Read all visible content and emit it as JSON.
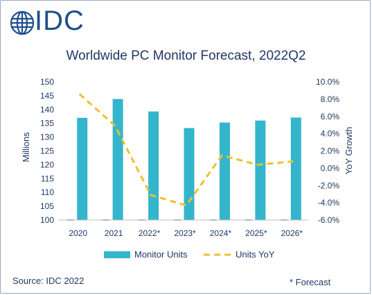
{
  "logo": {
    "text": "IDC",
    "icon": "globe-icon",
    "color": "#1f4e8c"
  },
  "chart_data": {
    "type": "bar",
    "title": "Worldwide PC Monitor Forecast, 2022Q2",
    "categories": [
      "2020",
      "2021",
      "2022*",
      "2023*",
      "2024*",
      "2025*",
      "2026*"
    ],
    "series": [
      {
        "name": "Monitor Units",
        "type": "bar",
        "axis": "left",
        "color": "#33b5cc",
        "values": [
          137.0,
          143.8,
          139.3,
          133.3,
          135.3,
          136.0,
          137.1
        ]
      },
      {
        "name": "Units YoY",
        "type": "line",
        "axis": "right",
        "style": "dashed",
        "color": "#f0c030",
        "values": [
          8.6,
          4.9,
          -3.1,
          -4.3,
          1.5,
          0.4,
          0.8
        ]
      }
    ],
    "ylabel": "Millions",
    "ylim": [
      100,
      150
    ],
    "yticks": [
      "100",
      "105",
      "110",
      "115",
      "120",
      "125",
      "130",
      "135",
      "140",
      "145",
      "150"
    ],
    "y2label": "YoY Growth",
    "y2lim": [
      -6,
      10
    ],
    "y2ticks": [
      "-6.0%",
      "-4.0%",
      "-2.0%",
      "0.0%",
      "2.0%",
      "4.0%",
      "6.0%",
      "8.0%",
      "10.0%"
    ],
    "grid": false,
    "legend": "bottom"
  },
  "source": "Source: IDC 2022",
  "footnote": "* Forecast"
}
